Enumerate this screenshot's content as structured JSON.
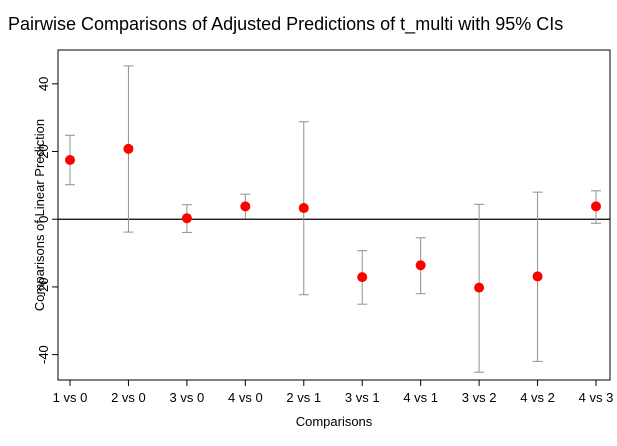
{
  "chart_data": {
    "type": "scatter",
    "title": "Pairwise Comparisons of Adjusted Predictions of t_multi with 95% CIs",
    "xlabel": "Comparisons",
    "ylabel": "Comparisons of Linear Prediction",
    "categories": [
      "1 vs 0",
      "2 vs 0",
      "3 vs 0",
      "4 vs 0",
      "2 vs 1",
      "3 vs 1",
      "4 vs 1",
      "3 vs 2",
      "4 vs 2",
      "4 vs 3"
    ],
    "values": [
      17.5,
      20.8,
      0.3,
      3.8,
      3.3,
      -17.1,
      -13.6,
      -20.2,
      -16.9,
      3.8
    ],
    "ci_lower": [
      10.2,
      -3.8,
      -3.9,
      0.2,
      -22.3,
      -25.1,
      -22.0,
      -45.2,
      -42.0,
      -1.2
    ],
    "ci_upper": [
      24.8,
      45.3,
      4.3,
      7.4,
      28.8,
      -9.3,
      -5.5,
      4.4,
      8.0,
      8.4
    ],
    "yticks": [
      -40,
      -20,
      0,
      20,
      40
    ],
    "ylim": [
      -47.5,
      50
    ],
    "reference_line": 0,
    "grid": false,
    "colors": {
      "point": "#ff0000",
      "ci": "#909090",
      "reference": "#000000",
      "axis": "#000000"
    }
  }
}
